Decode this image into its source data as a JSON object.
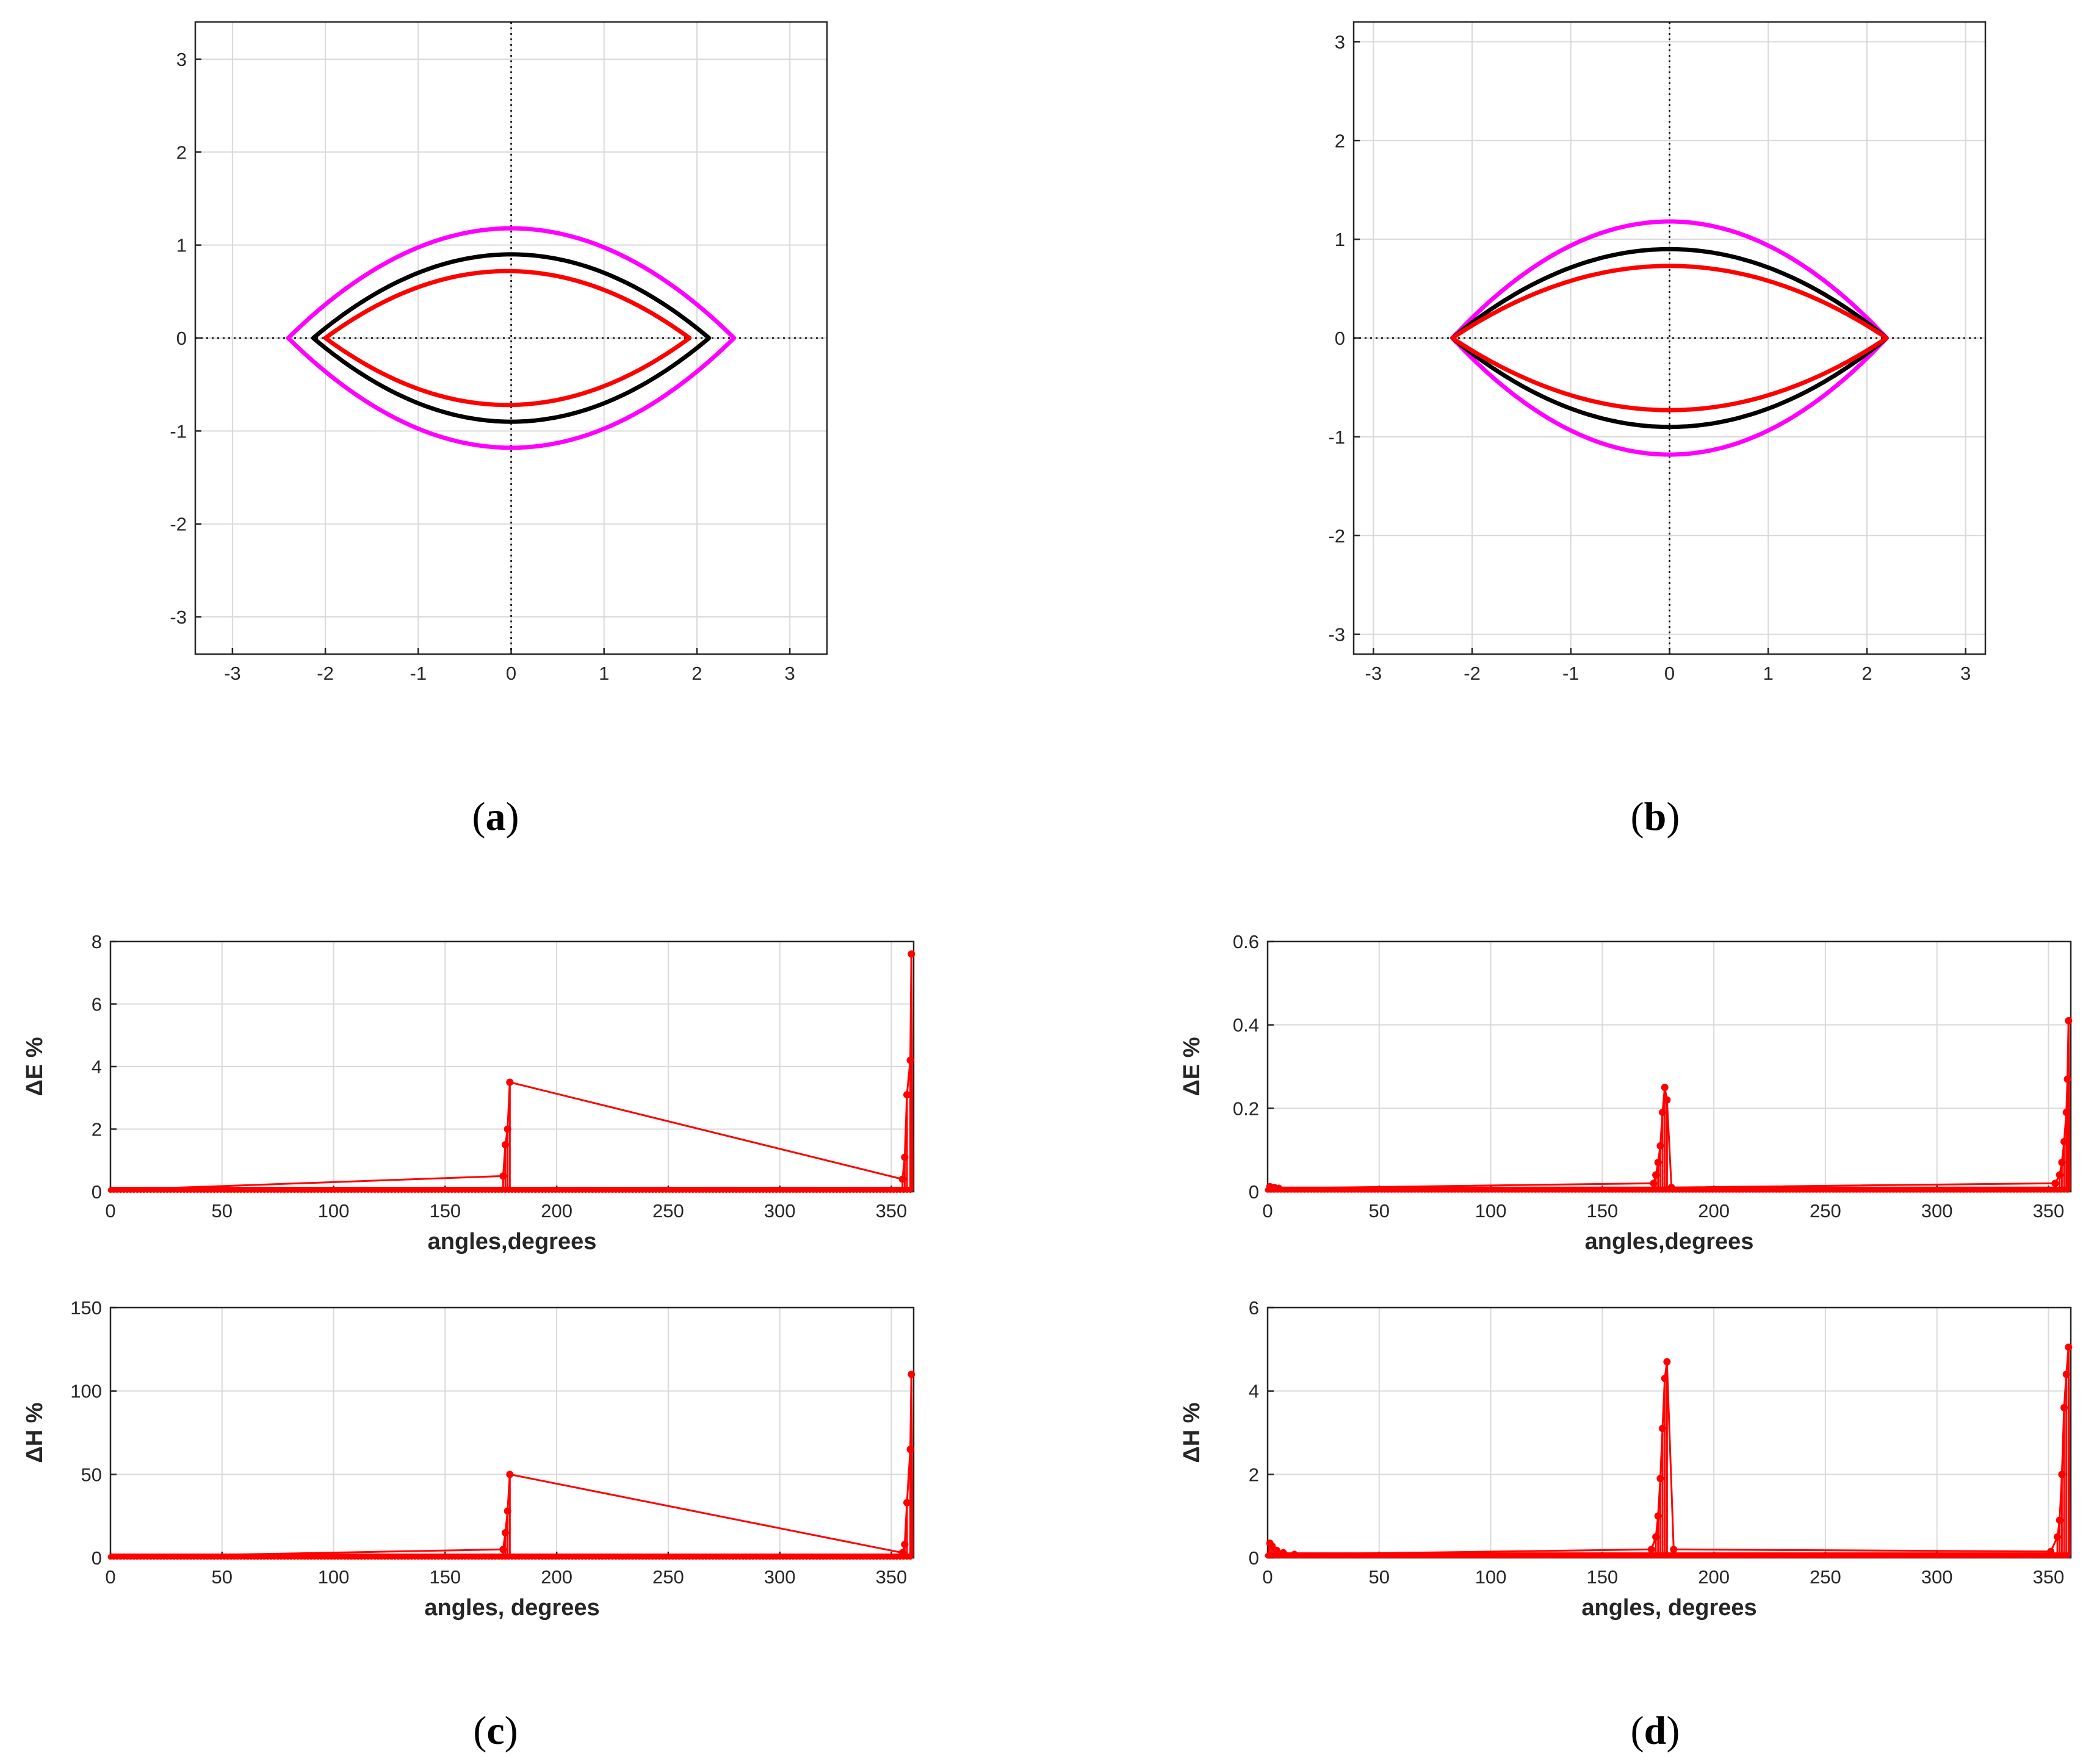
{
  "colors": {
    "magenta": "#ff00ff",
    "black": "#000000",
    "red": "#ff0000"
  },
  "captions": {
    "a": "a",
    "b": "b",
    "c": "c",
    "d": "d"
  },
  "chart_data": [
    {
      "id": "a",
      "type": "line",
      "xlim": [
        -3.4,
        3.4
      ],
      "ylim": [
        -3.4,
        3.4
      ],
      "xticks": [
        -3,
        -2,
        -1,
        0,
        1,
        2,
        3
      ],
      "yticks": [
        -3,
        -2,
        -1,
        0,
        1,
        2,
        3
      ],
      "xlabel": "",
      "ylabel": "",
      "grid": true,
      "series": [
        {
          "name": "magenta",
          "color": "#ff00ff",
          "semi_axis_x": 2.4,
          "semi_axis_y": 1.18,
          "x_shift": 0.0
        },
        {
          "name": "black",
          "color": "#000000",
          "semi_axis_x": 2.13,
          "semi_axis_y": 0.9,
          "x_shift": 0.0
        },
        {
          "name": "red",
          "color": "#ff0000",
          "semi_axis_x": 1.96,
          "semi_axis_y": 0.72,
          "x_shift": -0.04
        }
      ]
    },
    {
      "id": "b",
      "type": "line",
      "xlim": [
        -3.2,
        3.2
      ],
      "ylim": [
        -3.2,
        3.2
      ],
      "xticks": [
        -3,
        -2,
        -1,
        0,
        1,
        2,
        3
      ],
      "yticks": [
        -3,
        -2,
        -1,
        0,
        1,
        2,
        3
      ],
      "xlabel": "",
      "ylabel": "",
      "grid": true,
      "series": [
        {
          "name": "magenta",
          "color": "#ff00ff",
          "semi_axis_x": 2.2,
          "semi_axis_y": 1.18,
          "x_shift": 0.0
        },
        {
          "name": "black",
          "color": "#000000",
          "semi_axis_x": 2.2,
          "semi_axis_y": 0.9,
          "x_shift": 0.0
        },
        {
          "name": "red",
          "color": "#ff0000",
          "semi_axis_x": 2.2,
          "semi_axis_y": 0.73,
          "x_shift": 0.0
        }
      ]
    },
    {
      "id": "c-top",
      "type": "line",
      "xlim": [
        0,
        360
      ],
      "ylim": [
        0,
        8
      ],
      "xticks": [
        0,
        50,
        100,
        150,
        200,
        250,
        300,
        350
      ],
      "yticks": [
        0,
        2,
        4,
        6,
        8
      ],
      "xlabel": "angles,degrees",
      "ylabel": "ΔE %",
      "grid": true,
      "baseline": 0.05,
      "spikes": [
        {
          "x": 176,
          "y": 0.5
        },
        {
          "x": 177,
          "y": 1.5
        },
        {
          "x": 178,
          "y": 2.0
        },
        {
          "x": 179,
          "y": 3.5
        },
        {
          "x": 355,
          "y": 0.4
        },
        {
          "x": 356,
          "y": 1.1
        },
        {
          "x": 357,
          "y": 3.1
        },
        {
          "x": 358.5,
          "y": 4.2
        },
        {
          "x": 359,
          "y": 7.6
        }
      ]
    },
    {
      "id": "c-bottom",
      "type": "line",
      "xlim": [
        0,
        360
      ],
      "ylim": [
        0,
        150
      ],
      "xticks": [
        0,
        50,
        100,
        150,
        200,
        250,
        300,
        350
      ],
      "yticks": [
        0,
        50,
        100,
        150
      ],
      "xlabel": "angles, degrees",
      "ylabel": "ΔH %",
      "grid": true,
      "baseline": 0.5,
      "spikes": [
        {
          "x": 176,
          "y": 5
        },
        {
          "x": 177,
          "y": 15
        },
        {
          "x": 178,
          "y": 28
        },
        {
          "x": 179,
          "y": 50
        },
        {
          "x": 355,
          "y": 3
        },
        {
          "x": 356,
          "y": 8
        },
        {
          "x": 357,
          "y": 33
        },
        {
          "x": 358.5,
          "y": 65
        },
        {
          "x": 359,
          "y": 110
        }
      ]
    },
    {
      "id": "d-top",
      "type": "line",
      "xlim": [
        0,
        360
      ],
      "ylim": [
        0,
        0.6
      ],
      "xticks": [
        0,
        50,
        100,
        150,
        200,
        250,
        300,
        350
      ],
      "yticks": [
        0,
        0.2,
        0.4,
        0.6
      ],
      "xlabel": "angles,degrees",
      "ylabel": "ΔE %",
      "grid": true,
      "baseline": 0.004,
      "spikes": [
        {
          "x": 1,
          "y": 0.012
        },
        {
          "x": 3,
          "y": 0.01
        },
        {
          "x": 5,
          "y": 0.008
        },
        {
          "x": 173,
          "y": 0.02
        },
        {
          "x": 174,
          "y": 0.04
        },
        {
          "x": 175,
          "y": 0.07
        },
        {
          "x": 176,
          "y": 0.11
        },
        {
          "x": 177,
          "y": 0.19
        },
        {
          "x": 178,
          "y": 0.25
        },
        {
          "x": 179,
          "y": 0.22
        },
        {
          "x": 181,
          "y": 0.01
        },
        {
          "x": 353,
          "y": 0.02
        },
        {
          "x": 355,
          "y": 0.04
        },
        {
          "x": 356,
          "y": 0.07
        },
        {
          "x": 357,
          "y": 0.12
        },
        {
          "x": 358,
          "y": 0.19
        },
        {
          "x": 358.5,
          "y": 0.27
        },
        {
          "x": 359,
          "y": 0.41
        }
      ]
    },
    {
      "id": "d-bottom",
      "type": "line",
      "xlim": [
        0,
        360
      ],
      "ylim": [
        0,
        6
      ],
      "xticks": [
        0,
        50,
        100,
        150,
        200,
        250,
        300,
        350
      ],
      "yticks": [
        0,
        2,
        4,
        6
      ],
      "xlabel": "angles, degrees",
      "ylabel": "ΔH %",
      "grid": true,
      "baseline": 0.05,
      "spikes": [
        {
          "x": 1,
          "y": 0.35
        },
        {
          "x": 2,
          "y": 0.28
        },
        {
          "x": 4,
          "y": 0.18
        },
        {
          "x": 7,
          "y": 0.12
        },
        {
          "x": 12,
          "y": 0.08
        },
        {
          "x": 172,
          "y": 0.2
        },
        {
          "x": 174,
          "y": 0.5
        },
        {
          "x": 175,
          "y": 1.0
        },
        {
          "x": 176,
          "y": 1.9
        },
        {
          "x": 177,
          "y": 3.1
        },
        {
          "x": 178,
          "y": 4.3
        },
        {
          "x": 179,
          "y": 4.7
        },
        {
          "x": 182,
          "y": 0.2
        },
        {
          "x": 351,
          "y": 0.15
        },
        {
          "x": 354,
          "y": 0.5
        },
        {
          "x": 355,
          "y": 0.9
        },
        {
          "x": 356,
          "y": 2.0
        },
        {
          "x": 357,
          "y": 3.6
        },
        {
          "x": 358,
          "y": 4.4
        },
        {
          "x": 359,
          "y": 5.05
        }
      ]
    }
  ]
}
